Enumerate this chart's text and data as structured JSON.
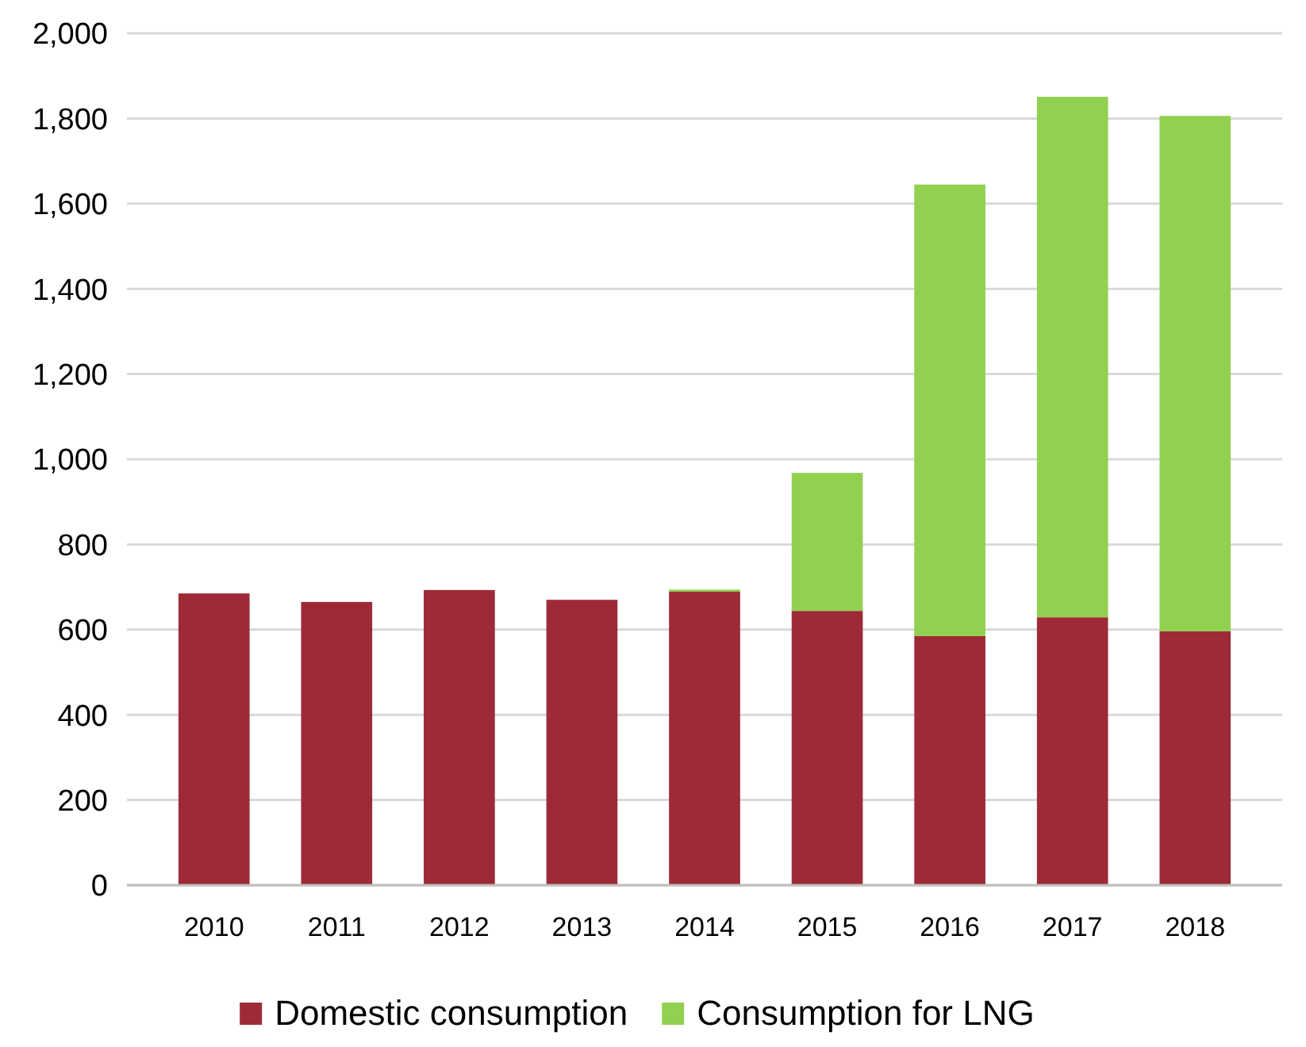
{
  "chart_data": {
    "type": "bar",
    "stacked": true,
    "categories": [
      "2010",
      "2011",
      "2012",
      "2013",
      "2014",
      "2015",
      "2016",
      "2017",
      "2018"
    ],
    "series": [
      {
        "name": "Domestic consumption",
        "color": "#9e2a38",
        "values": [
          685,
          665,
          693,
          670,
          689,
          644,
          585,
          629,
          596
        ]
      },
      {
        "name": "Consumption for LNG",
        "color": "#92d050",
        "values": [
          0,
          0,
          0,
          0,
          5,
          324,
          1060,
          1222,
          1210
        ]
      }
    ],
    "ylim": [
      0,
      2000
    ],
    "yticks": [
      {
        "value": 0,
        "label": "0"
      },
      {
        "value": 200,
        "label": "200"
      },
      {
        "value": 400,
        "label": "400"
      },
      {
        "value": 600,
        "label": "600"
      },
      {
        "value": 800,
        "label": "800"
      },
      {
        "value": 1000,
        "label": "1,000"
      },
      {
        "value": 1200,
        "label": "1,200"
      },
      {
        "value": 1400,
        "label": "1,400"
      },
      {
        "value": 1600,
        "label": "1,600"
      },
      {
        "value": 1800,
        "label": "1,800"
      },
      {
        "value": 2000,
        "label": "2,000"
      }
    ],
    "grid": "y",
    "legend": "bottom"
  }
}
